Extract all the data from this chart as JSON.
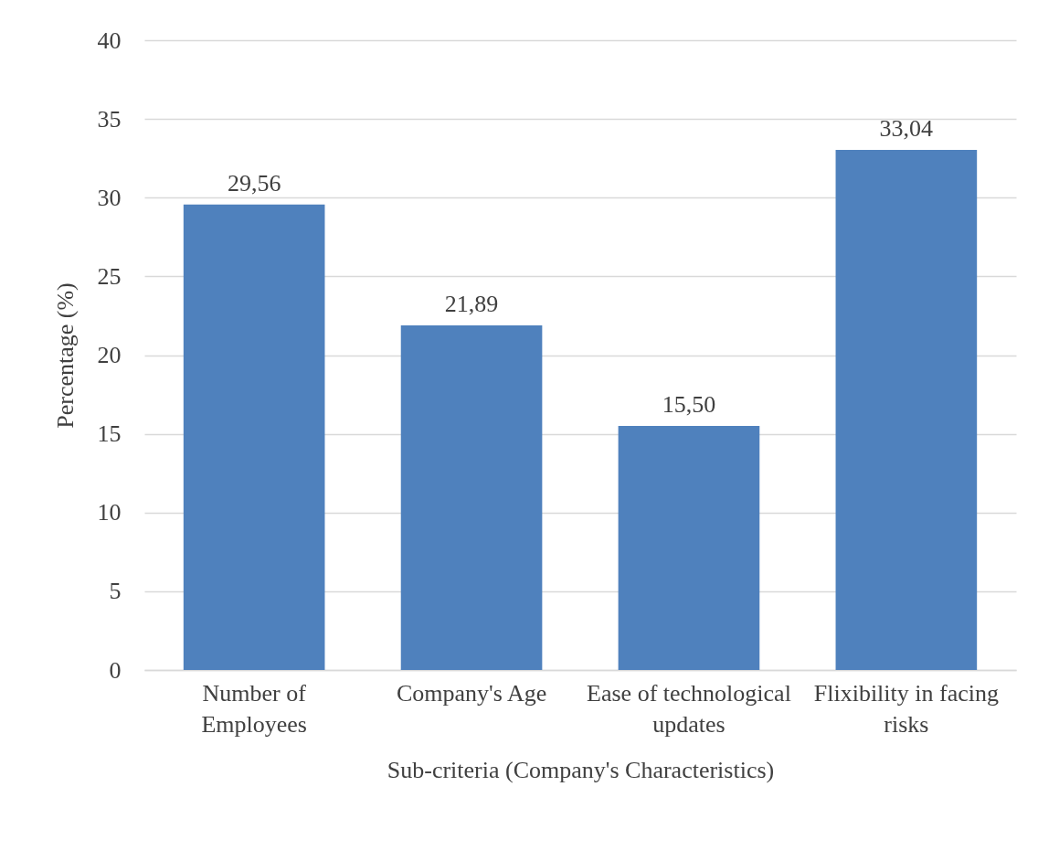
{
  "chart_data": {
    "type": "bar",
    "xlabel": "Sub-criteria (Company's Characteristics)",
    "ylabel": "Percentage (%)",
    "categories": [
      "Number of Employees",
      "Company's Age",
      "Ease of technological updates",
      "Flixibility in facing risks"
    ],
    "values": [
      29.56,
      21.89,
      15.5,
      33.04
    ],
    "value_labels": [
      "29,56",
      "21,89",
      "15,50",
      "33,04"
    ],
    "color": "#4f81bd",
    "ylim": [
      0,
      40
    ],
    "yticks": [
      0,
      5,
      10,
      15,
      20,
      25,
      30,
      35,
      40
    ],
    "grid": "y"
  }
}
